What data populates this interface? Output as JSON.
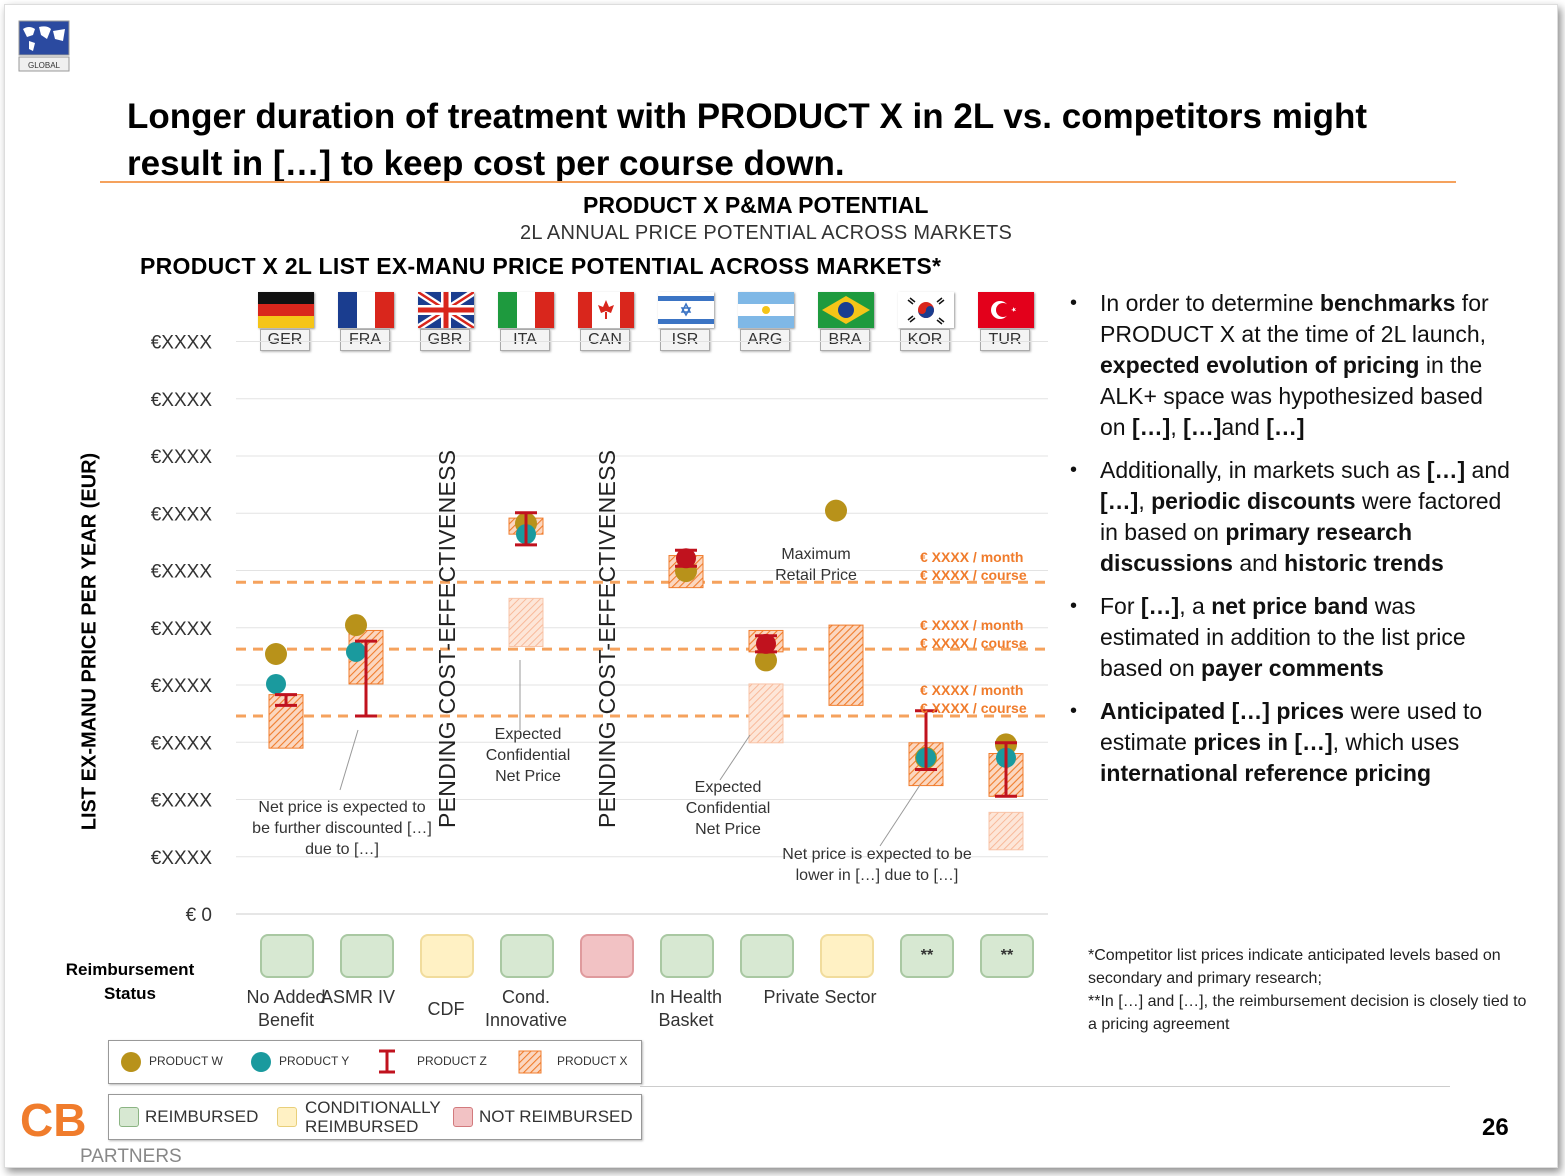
{
  "logo": {
    "global_label": "GLOBAL",
    "partners_letters": "CB",
    "partners_label": "PARTNERS"
  },
  "title": "Longer duration of treatment with PRODUCT X in 2L vs. competitors might result in […] to keep cost per course down.",
  "subtitle_main": "PRODUCT X P&MA POTENTIAL",
  "subtitle_sub": "2L ANNUAL PRICE POTENTIAL ACROSS MARKETS",
  "chart_title": "PRODUCT X 2L LIST EX-MANU PRICE POTENTIAL ACROSS MARKETS*",
  "page_number": "26",
  "chart_data": {
    "type": "scatter",
    "title": "PRODUCT X 2L LIST EX-MANU PRICE POTENTIAL ACROSS MARKETS*",
    "ylabel": "LIST EX-MANU PRICE PER YEAR (EUR)",
    "ytick_labels": [
      "€ 0",
      "€XXXX",
      "€XXXX",
      "€XXXX",
      "€XXXX",
      "€XXXX",
      "€XXXX",
      "€XXXX",
      "€XXXX",
      "€XXXX",
      "€XXXX"
    ],
    "ylim": [
      0,
      10.5
    ],
    "grid": true,
    "categories": [
      "GER",
      "FRA",
      "GBR",
      "ITA",
      "CAN",
      "ISR",
      "ARG",
      "BRA",
      "KOR",
      "TUR"
    ],
    "series": [
      {
        "name": "PRODUCT W",
        "color": "#b8921a",
        "values": [
          4.86,
          5.4,
          null,
          7.3,
          null,
          6.41,
          4.74,
          7.54,
          2.92,
          3.17
        ]
      },
      {
        "name": "PRODUCT Y",
        "color": "#1a9a9e",
        "values": [
          4.3,
          4.9,
          null,
          7.1,
          null,
          null,
          null,
          null,
          2.92,
          2.92
        ]
      },
      {
        "name": "PRODUCT Z",
        "color": "#c0121e",
        "range_values": [
          [
            3.9,
            4.1
          ],
          [
            3.7,
            5.1
          ],
          null,
          [
            6.9,
            7.5
          ],
          null,
          [
            6.5,
            6.8
          ],
          [
            4.9,
            5.2
          ],
          null,
          [
            2.7,
            3.8
          ],
          [
            2.2,
            3.2
          ]
        ]
      },
      {
        "name": "PRODUCT X",
        "color": "#f07c2c",
        "range_values": [
          [
            3.1,
            4.1
          ],
          [
            4.3,
            5.3
          ],
          null,
          [
            7.1,
            7.4
          ],
          null,
          [
            6.1,
            6.7
          ],
          [
            4.9,
            5.3
          ],
          [
            3.9,
            5.4
          ],
          [
            2.4,
            3.2
          ],
          [
            2.2,
            3.0
          ]
        ]
      },
      {
        "name": "PRODUCT X (expected net)",
        "color": "#fbd0b6",
        "range_values": [
          null,
          null,
          null,
          [
            5.0,
            5.9
          ],
          null,
          null,
          [
            3.2,
            4.3
          ],
          null,
          null,
          [
            1.2,
            1.9
          ]
        ]
      }
    ],
    "reference_lines": [
      {
        "y": 6.2,
        "label1": "€ XXXX / month",
        "label2": "€ XXXX / course"
      },
      {
        "y": 4.95,
        "label1": "€ XXXX / month",
        "label2": "€ XXXX / course"
      },
      {
        "y": 3.7,
        "label1": "€ XXXX / month",
        "label2": "€ XXXX / course"
      }
    ],
    "pending_label": "PENDING COST-EFFECTIVENESS",
    "pending_categories": [
      "GBR",
      "CAN"
    ]
  },
  "annotations": {
    "ita": "Expected Confidential Net Price",
    "arg": "Expected Confidential Net Price",
    "bra": "Maximum Retail Price",
    "fra": "Net price is expected to be further discounted […] due to […]",
    "kor": "Net price is expected to be lower in […] due to […]"
  },
  "reimbursement": {
    "title": "Reimbursement Status",
    "statuses": [
      {
        "market": "GER",
        "status": "reimbursed",
        "label": "No Added Benefit",
        "mark": ""
      },
      {
        "market": "FRA",
        "status": "reimbursed",
        "label": "ASMR IV",
        "mark": ""
      },
      {
        "market": "GBR",
        "status": "conditional",
        "label": "CDF",
        "mark": ""
      },
      {
        "market": "ITA",
        "status": "reimbursed",
        "label": "Cond. Innovative",
        "mark": ""
      },
      {
        "market": "CAN",
        "status": "not",
        "label": "",
        "mark": ""
      },
      {
        "market": "ISR",
        "status": "reimbursed",
        "label": "In Health Basket",
        "mark": ""
      },
      {
        "market": "ARG",
        "status": "reimbursed",
        "label": "",
        "mark": ""
      },
      {
        "market": "BRA",
        "status": "conditional",
        "label": "Private Sector",
        "mark": ""
      },
      {
        "market": "KOR",
        "status": "reimbursed",
        "label": "",
        "mark": "**"
      },
      {
        "market": "TUR",
        "status": "reimbursed",
        "label": "",
        "mark": "**"
      }
    ],
    "colors": {
      "reimbursed": "#d7e8d2",
      "conditional": "#fff1c4",
      "not": "#f2c2c4"
    }
  },
  "legend_products": [
    "PRODUCT W",
    "PRODUCT Y",
    "PRODUCT Z",
    "PRODUCT X"
  ],
  "legend_status": [
    "REIMBURSED",
    "CONDITIONALLY REIMBURSED",
    "NOT REIMBURSED"
  ],
  "bullets": [
    "In order to determine <b>benchmarks</b> for PRODUCT X at the time of 2L launch, <b>expected evolution of pricing</b> in the ALK+ space was hypothesized based on <b>[…]</b>, <b>[…]</b>and <b>[…]</b>",
    "Additionally, in markets such as <b>[…]</b> and <b>[…]</b>, <b>periodic discounts</b> were factored in based on <b>primary research discussions</b> and <b>historic trends</b>",
    "For <b>[…]</b>, a <b>net price band</b> was estimated in addition to the list price based on <b>payer comments</b>",
    "<b>Anticipated […] prices</b> were used to estimate <b>prices in […]</b>, which uses <b>international reference pricing</b>"
  ],
  "footnote": [
    "*Competitor list prices indicate anticipated levels based on secondary and primary research;",
    "**In […] and […], the reimbursement decision is closely tied to a pricing agreement"
  ]
}
